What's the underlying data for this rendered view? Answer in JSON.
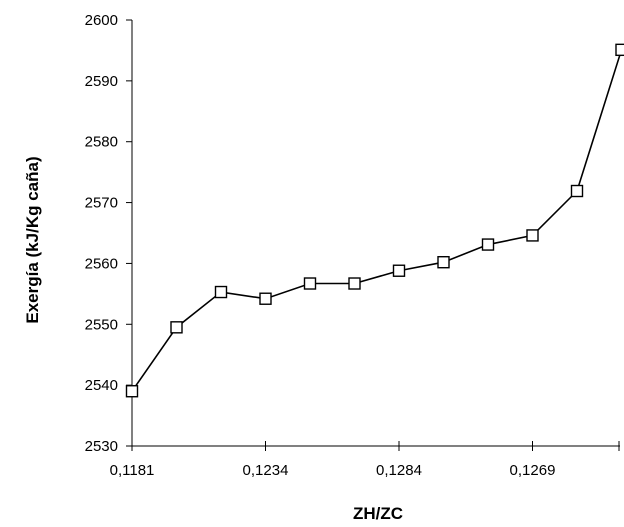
{
  "chart_data": {
    "type": "line",
    "title": "",
    "xlabel": "ZH/ZC",
    "ylabel": "Exergía (kJ/Kg caña)",
    "ylim": [
      2530,
      2600
    ],
    "yticks": [
      2530,
      2540,
      2550,
      2560,
      2570,
      2580,
      2590,
      2600
    ],
    "x_tick_labels": [
      "0,1181",
      "0,1234",
      "0,1284",
      "0,1269"
    ],
    "x_tick_label_at_index": [
      0,
      3,
      6,
      9
    ],
    "x_point_count": 12,
    "grid": false,
    "legend": "none",
    "series": [
      {
        "values": [
          2539.0,
          2549.5,
          2555.3,
          2554.2,
          2556.7,
          2556.7,
          2558.8,
          2560.2,
          2563.1,
          2564.6,
          2571.9,
          2595.1
        ],
        "marker": "hollow-square",
        "color": "#000000"
      }
    ]
  }
}
